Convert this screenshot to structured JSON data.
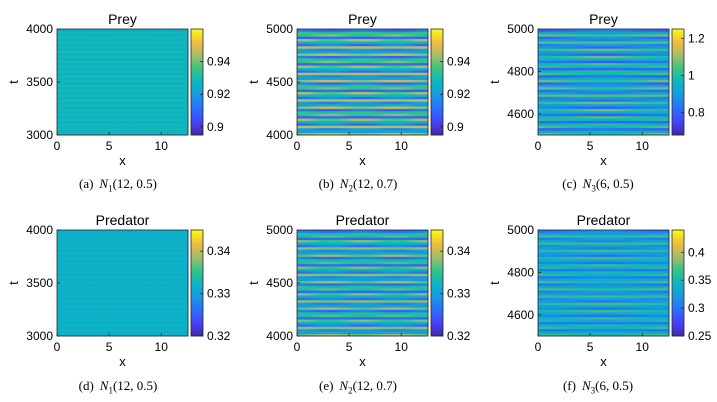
{
  "figure": {
    "panels": [
      {
        "id": "a",
        "caption_label": "(a)",
        "func": "N",
        "sub": "1",
        "args": "(12, 0.5)"
      },
      {
        "id": "b",
        "caption_label": "(b)",
        "func": "N",
        "sub": "2",
        "args": "(12, 0.7)"
      },
      {
        "id": "c",
        "caption_label": "(c)",
        "func": "N",
        "sub": "3",
        "args": "(6, 0.5)"
      },
      {
        "id": "d",
        "caption_label": "(d)",
        "func": "N",
        "sub": "1",
        "args": "(12, 0.5)"
      },
      {
        "id": "e",
        "caption_label": "(e)",
        "func": "N",
        "sub": "2",
        "args": "(12, 0.7)"
      },
      {
        "id": "f",
        "caption_label": "(f)",
        "func": "N",
        "sub": "3",
        "args": "(6, 0.5)"
      }
    ]
  },
  "colors": {
    "parula": [
      "#3e26a8",
      "#4743f8",
      "#2b6efd",
      "#1898e0",
      "#0cb5c3",
      "#35c385",
      "#a3bd6a",
      "#f2bb40",
      "#f9fb15"
    ],
    "axis": "#262626"
  },
  "chart_data": [
    {
      "type": "heatmap",
      "title": "Prey",
      "xlabel": "x",
      "ylabel": "t",
      "xlim": [
        0,
        12.57
      ],
      "ylim": [
        3000,
        4000
      ],
      "xticks": [
        0,
        5,
        10
      ],
      "yticks": [
        3000,
        3500,
        4000
      ],
      "clim": [
        0.895,
        0.96
      ],
      "cticks": [
        0.9,
        0.92,
        0.94
      ],
      "field": {
        "base": 0.928,
        "stripes": 22,
        "amp": 0.0015,
        "modes": 0,
        "beat": 0
      }
    },
    {
      "type": "heatmap",
      "title": "Prey",
      "xlabel": "x",
      "ylabel": "t",
      "xlim": [
        0,
        12.57
      ],
      "ylim": [
        4000,
        5000
      ],
      "xticks": [
        0,
        5,
        10
      ],
      "yticks": [
        4000,
        4500,
        5000
      ],
      "clim": [
        0.895,
        0.96
      ],
      "cticks": [
        0.9,
        0.92,
        0.94
      ],
      "field": {
        "base": 0.928,
        "stripes": 28,
        "amp": 0.018,
        "modes": 2,
        "beat": 0.25
      }
    },
    {
      "type": "heatmap",
      "title": "Prey",
      "xlabel": "x",
      "ylabel": "t",
      "xlim": [
        0,
        12.57
      ],
      "ylim": [
        4500,
        5000
      ],
      "xticks": [
        0,
        5,
        10
      ],
      "yticks": [
        4600,
        4800,
        5000
      ],
      "clim": [
        0.68,
        1.25
      ],
      "cticks": [
        0.8,
        1,
        1.2
      ],
      "field": {
        "base": 0.93,
        "stripes": 14,
        "amp": 0.12,
        "modes": 1,
        "beat": 0.35
      }
    },
    {
      "type": "heatmap",
      "title": "Predator",
      "xlabel": "x",
      "ylabel": "t",
      "xlim": [
        0,
        12.57
      ],
      "ylim": [
        3000,
        4000
      ],
      "xticks": [
        0,
        5,
        10
      ],
      "yticks": [
        3000,
        3500,
        4000
      ],
      "clim": [
        0.32,
        0.345
      ],
      "cticks": [
        0.32,
        0.33,
        0.34
      ],
      "field": {
        "base": 0.332,
        "stripes": 22,
        "amp": 0.0005,
        "modes": 0,
        "beat": 0
      }
    },
    {
      "type": "heatmap",
      "title": "Predator",
      "xlabel": "x",
      "ylabel": "t",
      "xlim": [
        0,
        12.57
      ],
      "ylim": [
        4000,
        5000
      ],
      "xticks": [
        0,
        5,
        10
      ],
      "yticks": [
        4000,
        4500,
        5000
      ],
      "clim": [
        0.32,
        0.345
      ],
      "cticks": [
        0.32,
        0.33,
        0.34
      ],
      "field": {
        "base": 0.332,
        "stripes": 28,
        "amp": 0.006,
        "modes": 2,
        "beat": 0.25
      }
    },
    {
      "type": "heatmap",
      "title": "Predator",
      "xlabel": "x",
      "ylabel": "t",
      "xlim": [
        0,
        12.57
      ],
      "ylim": [
        4500,
        5000
      ],
      "xticks": [
        0,
        5,
        10
      ],
      "yticks": [
        4600,
        4800,
        5000
      ],
      "clim": [
        0.25,
        0.44
      ],
      "cticks": [
        0.25,
        0.3,
        0.35,
        0.4
      ],
      "field": {
        "base": 0.333,
        "stripes": 14,
        "amp": 0.03,
        "modes": 1,
        "beat": 0.35
      }
    }
  ]
}
